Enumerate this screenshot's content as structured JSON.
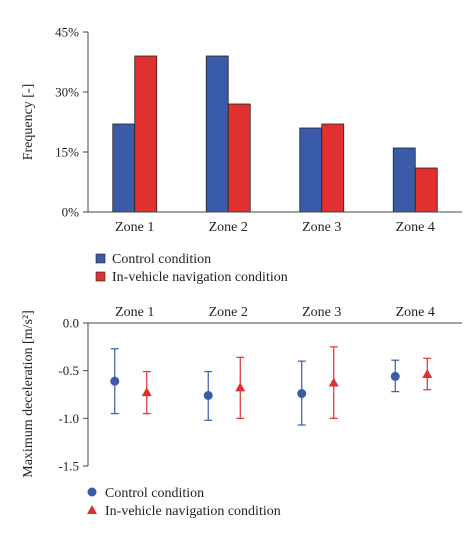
{
  "chart_data": [
    {
      "type": "bar",
      "categories": [
        "Zone 1",
        "Zone 2",
        "Zone 3",
        "Zone 4"
      ],
      "ylabel": "Frequency [-]",
      "ylim": [
        0,
        45
      ],
      "yticks": [
        "0%",
        "15%",
        "30%",
        "45%"
      ],
      "series": [
        {
          "name": "Control condition",
          "color": "#3a5ba8",
          "values": [
            22,
            39,
            21,
            16
          ]
        },
        {
          "name": "In-vehicle navigation condition",
          "color": "#e03030",
          "values": [
            39,
            27,
            22,
            11
          ]
        }
      ],
      "legend": "below"
    },
    {
      "type": "scatter",
      "categories": [
        "Zone 1",
        "Zone 2",
        "Zone 3",
        "Zone 4"
      ],
      "ylabel": "Maximum deceleration [m/s²]",
      "ylim": [
        -1.5,
        0.0
      ],
      "yticks": [
        "0.0",
        "-0.5",
        "-1.0",
        "-1.5"
      ],
      "category_labels_position": "top",
      "series": [
        {
          "name": "Control condition",
          "marker": "circle",
          "color": "#3a5ba8",
          "values": [
            -0.61,
            -0.76,
            -0.74,
            -0.56
          ],
          "error_low": [
            -0.95,
            -1.02,
            -1.07,
            -0.72
          ],
          "error_high": [
            -0.27,
            -0.51,
            -0.4,
            -0.39
          ]
        },
        {
          "name": "In-vehicle navigation condition",
          "marker": "triangle",
          "color": "#e03030",
          "values": [
            -0.73,
            -0.68,
            -0.63,
            -0.54
          ],
          "error_low": [
            -0.95,
            -1.0,
            -1.0,
            -0.7
          ],
          "error_high": [
            -0.51,
            -0.36,
            -0.25,
            -0.37
          ]
        }
      ],
      "legend": "below"
    }
  ]
}
